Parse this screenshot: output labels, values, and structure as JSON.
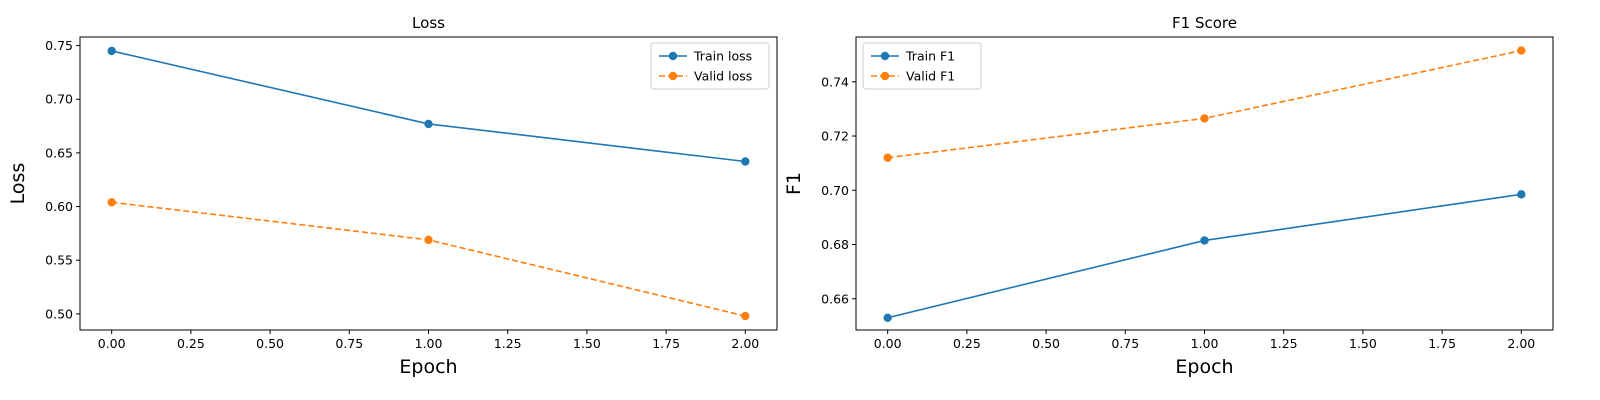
{
  "chart_data": [
    {
      "type": "line",
      "title": "Loss",
      "xlabel": "Epoch",
      "ylabel": "Loss",
      "xlim": [
        -0.1,
        2.1
      ],
      "ylim": [
        0.485,
        0.758
      ],
      "xticks": [
        0.0,
        0.25,
        0.5,
        0.75,
        1.0,
        1.25,
        1.5,
        1.75,
        2.0
      ],
      "xtick_labels": [
        "0.00",
        "0.25",
        "0.50",
        "0.75",
        "1.00",
        "1.25",
        "1.50",
        "1.75",
        "2.00"
      ],
      "yticks": [
        0.5,
        0.55,
        0.6,
        0.65,
        0.7,
        0.75
      ],
      "ytick_labels": [
        "0.50",
        "0.55",
        "0.60",
        "0.65",
        "0.70",
        "0.75"
      ],
      "grid": false,
      "legend_position": "top-right",
      "series": [
        {
          "name": "Train loss",
          "x": [
            0,
            1,
            2
          ],
          "y": [
            0.745,
            0.677,
            0.642
          ],
          "color": "#1f77b4",
          "linestyle": "solid",
          "marker": "circle"
        },
        {
          "name": "Valid loss",
          "x": [
            0,
            1,
            2
          ],
          "y": [
            0.604,
            0.569,
            0.498
          ],
          "color": "#ff7f0e",
          "linestyle": "dashed",
          "marker": "circle"
        }
      ]
    },
    {
      "type": "line",
      "title": "F1 Score",
      "xlabel": "Epoch",
      "ylabel": "F1",
      "xlim": [
        -0.1,
        2.1
      ],
      "ylim": [
        0.6485,
        0.7565
      ],
      "xticks": [
        0.0,
        0.25,
        0.5,
        0.75,
        1.0,
        1.25,
        1.5,
        1.75,
        2.0
      ],
      "xtick_labels": [
        "0.00",
        "0.25",
        "0.50",
        "0.75",
        "1.00",
        "1.25",
        "1.50",
        "1.75",
        "2.00"
      ],
      "yticks": [
        0.66,
        0.68,
        0.7,
        0.72,
        0.74
      ],
      "ytick_labels": [
        "0.66",
        "0.68",
        "0.70",
        "0.72",
        "0.74"
      ],
      "grid": false,
      "legend_position": "top-left",
      "series": [
        {
          "name": "Train F1",
          "x": [
            0,
            1,
            2
          ],
          "y": [
            0.653,
            0.6815,
            0.6985
          ],
          "color": "#1f77b4",
          "linestyle": "solid",
          "marker": "circle"
        },
        {
          "name": "Valid F1",
          "x": [
            0,
            1,
            2
          ],
          "y": [
            0.712,
            0.7265,
            0.7515
          ],
          "color": "#ff7f0e",
          "linestyle": "dashed",
          "marker": "circle"
        }
      ]
    }
  ]
}
